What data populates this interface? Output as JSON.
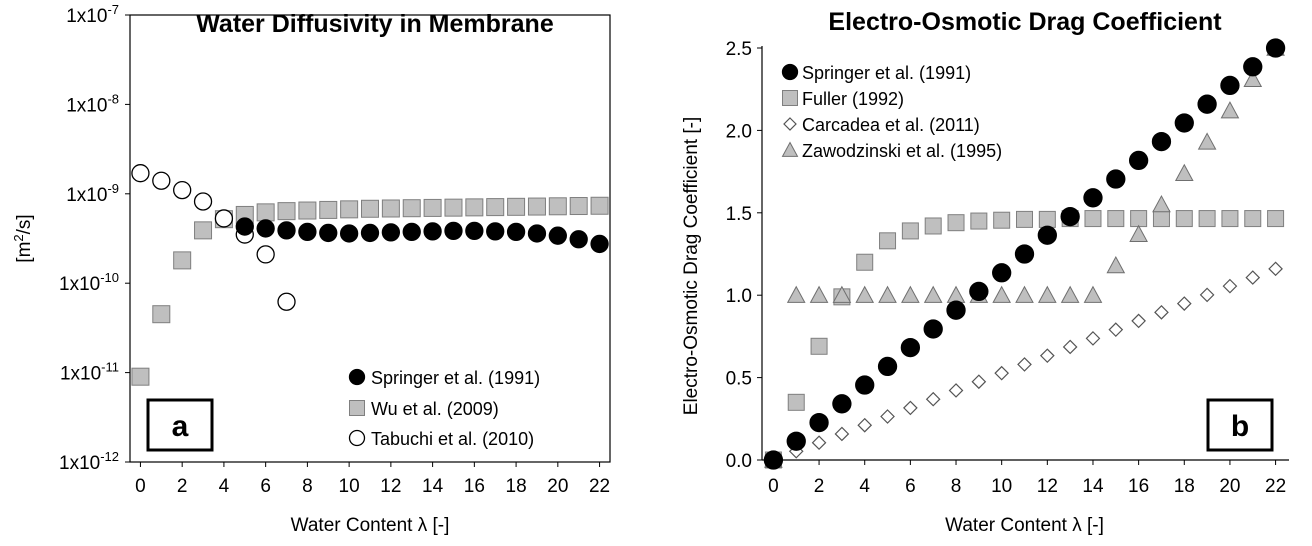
{
  "chart_data": [
    {
      "type": "scatter",
      "panel": "a",
      "title": "Water Diffusivity in Membrane",
      "xlabel": "Water Content λ [-]",
      "ylabel_base": "[m",
      "ylabel_sup": "2",
      "ylabel_tail": "/s]",
      "yscale": "log",
      "xlim": [
        -0.5,
        22.5
      ],
      "ylim_exp": [
        -12,
        -7
      ],
      "x_ticks": [
        "0",
        "2",
        "4",
        "6",
        "8",
        "10",
        "12",
        "14",
        "16",
        "18",
        "20",
        "22"
      ],
      "y_ticks": [
        {
          "base": "1x10",
          "exp": "-7"
        },
        {
          "base": "1x10",
          "exp": "-8"
        },
        {
          "base": "1x10",
          "exp": "-9"
        },
        {
          "base": "1x10",
          "exp": "-10"
        },
        {
          "base": "1x10",
          "exp": "-11"
        },
        {
          "base": "1x10",
          "exp": "-12"
        }
      ],
      "legend_position": "bottom-right",
      "series": [
        {
          "name": "Springer et al. (1991)",
          "marker": "circle-filled",
          "x": [
            5,
            6,
            7,
            8,
            9,
            10,
            11,
            12,
            13,
            14,
            15,
            16,
            17,
            18,
            19,
            20,
            21,
            22
          ],
          "y": [
            4.3e-10,
            4.1e-10,
            3.9e-10,
            3.75e-10,
            3.65e-10,
            3.6e-10,
            3.65e-10,
            3.7e-10,
            3.75e-10,
            3.8e-10,
            3.85e-10,
            3.85e-10,
            3.8e-10,
            3.75e-10,
            3.6e-10,
            3.4e-10,
            3.1e-10,
            2.75e-10
          ]
        },
        {
          "name": "Wu et al. (2009)",
          "marker": "square-gray",
          "x": [
            0,
            1,
            2,
            3,
            4,
            5,
            6,
            7,
            8,
            9,
            10,
            11,
            12,
            13,
            14,
            15,
            16,
            17,
            18,
            19,
            20,
            21,
            22
          ],
          "y": [
            9e-12,
            4.5e-11,
            1.8e-10,
            3.9e-10,
            5.2e-10,
            5.8e-10,
            6.2e-10,
            6.4e-10,
            6.5e-10,
            6.6e-10,
            6.7e-10,
            6.8e-10,
            6.85e-10,
            6.9e-10,
            6.95e-10,
            7e-10,
            7.05e-10,
            7.1e-10,
            7.15e-10,
            7.2e-10,
            7.25e-10,
            7.3e-10,
            7.35e-10
          ]
        },
        {
          "name": "Tabuchi et al. (2010)",
          "marker": "circle-open",
          "x": [
            0,
            1,
            2,
            3,
            4,
            5,
            6,
            7
          ],
          "y": [
            1.7e-09,
            1.4e-09,
            1.1e-09,
            8.2e-10,
            5.3e-10,
            3.5e-10,
            2.1e-10,
            6.2e-11
          ]
        }
      ]
    },
    {
      "type": "scatter",
      "panel": "b",
      "title": "Electro-Osmotic Drag Coefficient",
      "xlabel": "Water Content λ [-]",
      "ylabel": "Electro-Osmotic Drag Coefficient [-]",
      "xlim": [
        -0.5,
        22.5
      ],
      "ylim": [
        0,
        2.5
      ],
      "x_ticks": [
        "0",
        "2",
        "4",
        "6",
        "8",
        "10",
        "12",
        "14",
        "16",
        "18",
        "20",
        "22"
      ],
      "y_ticks": [
        "0.0",
        "0.5",
        "1.0",
        "1.5",
        "2.0",
        "2.5"
      ],
      "legend_position": "top-left",
      "series": [
        {
          "name": "Springer et al. (1991)",
          "marker": "circle-filled",
          "x": [
            0,
            1,
            2,
            3,
            4,
            5,
            6,
            7,
            8,
            9,
            10,
            11,
            12,
            13,
            14,
            15,
            16,
            17,
            18,
            19,
            20,
            21,
            22
          ],
          "y": [
            0,
            0.114,
            0.227,
            0.341,
            0.455,
            0.568,
            0.682,
            0.795,
            0.909,
            1.023,
            1.136,
            1.25,
            1.364,
            1.477,
            1.591,
            1.705,
            1.818,
            1.932,
            2.045,
            2.159,
            2.273,
            2.386,
            2.5
          ]
        },
        {
          "name": "Fuller (1992)",
          "marker": "square-gray",
          "x": [
            0,
            1,
            2,
            3,
            4,
            5,
            6,
            7,
            8,
            9,
            10,
            11,
            12,
            13,
            14,
            15,
            16,
            17,
            18,
            19,
            20,
            21,
            22
          ],
          "y": [
            0,
            0.35,
            0.69,
            0.99,
            1.2,
            1.33,
            1.39,
            1.42,
            1.44,
            1.45,
            1.455,
            1.46,
            1.46,
            1.465,
            1.465,
            1.465,
            1.465,
            1.465,
            1.465,
            1.465,
            1.465,
            1.465,
            1.465
          ]
        },
        {
          "name": "Carcadea et al. (2011)",
          "marker": "diamond-open",
          "x": [
            0,
            1,
            2,
            3,
            4,
            5,
            6,
            7,
            8,
            9,
            10,
            11,
            12,
            13,
            14,
            15,
            16,
            17,
            18,
            19,
            20,
            21,
            22
          ],
          "y": [
            0,
            0.053,
            0.105,
            0.158,
            0.211,
            0.264,
            0.316,
            0.369,
            0.422,
            0.475,
            0.527,
            0.58,
            0.633,
            0.686,
            0.738,
            0.791,
            0.844,
            0.896,
            0.949,
            1.002,
            1.055,
            1.107,
            1.16
          ]
        },
        {
          "name": "Zawodzinski et al. (1995)",
          "marker": "triangle-gray",
          "x": [
            0,
            1,
            2,
            3,
            4,
            5,
            6,
            7,
            8,
            9,
            10,
            11,
            12,
            13,
            14,
            15,
            16,
            17,
            18,
            19,
            20,
            21,
            22
          ],
          "y": [
            0,
            1,
            1,
            1,
            1,
            1,
            1,
            1,
            1,
            1,
            1,
            1,
            1,
            1,
            1,
            1.18,
            1.37,
            1.55,
            1.74,
            1.93,
            2.12,
            2.31,
            2.5
          ]
        }
      ]
    }
  ]
}
